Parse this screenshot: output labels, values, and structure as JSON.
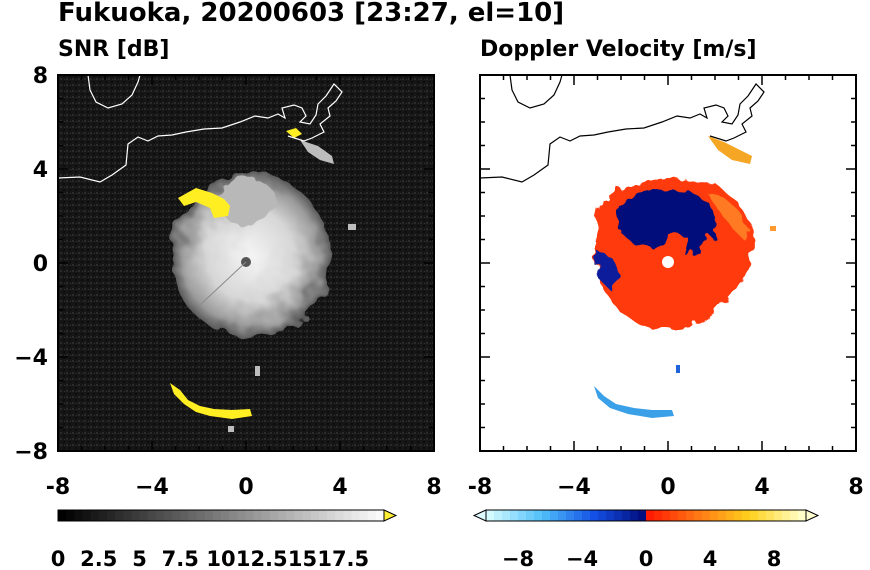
{
  "figure_title": "Fukuoka, 20200603 [23:27, el=10]",
  "chart_data": [
    {
      "type": "heatmap",
      "title": "SNR [dB]",
      "xlim": [
        -8,
        8
      ],
      "ylim": [
        -8,
        8
      ],
      "xticks": [
        "-8",
        "−4",
        "0",
        "4",
        "8"
      ],
      "yticks": [
        "8",
        "4",
        "0",
        "−4",
        "−8"
      ],
      "colorbar": {
        "range": [
          0,
          20
        ],
        "extend": "max",
        "tick_labels": [
          "0",
          "2.5",
          "5",
          "7.5",
          "10",
          "12.5",
          "15",
          "17.5"
        ],
        "colors": {
          "low": "#000000",
          "high": "#ffffff",
          "over": "#ffee33"
        }
      },
      "background_color": "#1a1a1a",
      "echo_color": "#c8c8c8",
      "saturated_color": "#ffee22",
      "radar_site": {
        "x": 0,
        "y": 0
      },
      "echo_regions": [
        {
          "name": "central echo",
          "center": [
            0.2,
            0.3
          ],
          "radius_km": 3.4,
          "value_db": 15
        },
        {
          "name": "northeast band",
          "center": [
            3.2,
            4.8
          ],
          "value_db": 18
        },
        {
          "name": "southern band",
          "center": [
            -1.3,
            -6.3
          ],
          "value_db": 18
        },
        {
          "name": "northwest band",
          "center": [
            -2.0,
            2.8
          ],
          "value_db": 18
        }
      ]
    },
    {
      "type": "heatmap",
      "title": "Doppler Velocity [m/s]",
      "xlim": [
        -8,
        8
      ],
      "ylim": [
        -8,
        8
      ],
      "xticks": [
        "-8",
        "−4",
        "0",
        "4",
        "8"
      ],
      "yticks": [],
      "colorbar": {
        "range": [
          -10,
          10
        ],
        "extend": "both",
        "tick_labels": [
          "−8",
          "−4",
          "0",
          "4",
          "8"
        ],
        "colors": {
          "under": "#dffaff",
          "negative": "#000a78",
          "zero": "#ff1a00",
          "positive": "#ffd000",
          "over": "#ffffd0"
        }
      },
      "radar_site": {
        "x": 0,
        "y": 0
      },
      "echo_regions": [
        {
          "name": "approaching core",
          "center": [
            0.1,
            1.5
          ],
          "value_ms": -7
        },
        {
          "name": "receding ring",
          "center": [
            0.3,
            0.2
          ],
          "value_ms": 2
        },
        {
          "name": "northeast band",
          "center": [
            3.1,
            4.6
          ],
          "value_ms": 6
        },
        {
          "name": "southern band",
          "center": [
            -1.3,
            -6.3
          ],
          "value_ms": -4
        }
      ]
    }
  ]
}
